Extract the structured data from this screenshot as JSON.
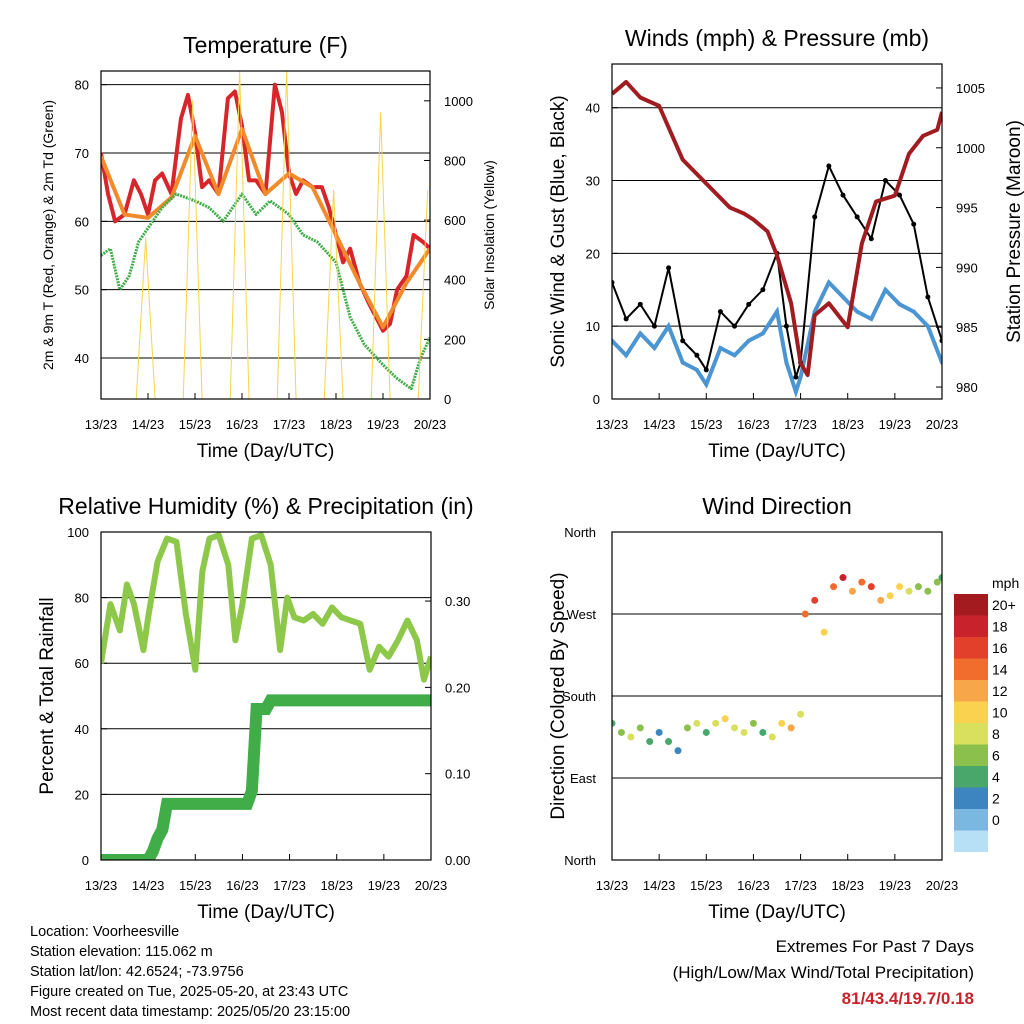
{
  "chart_data": [
    {
      "id": "temperature",
      "type": "line",
      "title": "Temperature (F)",
      "xlabel": "Time (Day/UTC)",
      "ylabel": "2m & 9m T (Red, Orange) & 2m Td (Green)",
      "ylabel_right": "Solar Insolation (Yellow)",
      "ylim": [
        34,
        82
      ],
      "yticks": [
        40,
        50,
        60,
        70,
        80
      ],
      "y2lim": [
        0,
        1100
      ],
      "y2ticks": [
        0,
        200,
        400,
        600,
        800,
        1000
      ],
      "x_ticks": [
        "13/23",
        "14/23",
        "15/23",
        "16/23",
        "17/23",
        "18/23",
        "19/23",
        "20/23"
      ],
      "grid": true,
      "series": [
        {
          "name": "2m T",
          "color": "#d7262b",
          "x": [
            0,
            0.15,
            0.3,
            0.5,
            0.7,
            0.85,
            1.0,
            1.15,
            1.3,
            1.5,
            1.7,
            1.85,
            2.0,
            2.15,
            2.3,
            2.5,
            2.7,
            2.85,
            3.0,
            3.15,
            3.3,
            3.5,
            3.7,
            3.85,
            4.0,
            4.15,
            4.3,
            4.5,
            4.7,
            4.85,
            5.0,
            5.15,
            5.3,
            5.5,
            5.7,
            5.85,
            6.0,
            6.15,
            6.3,
            6.5,
            6.65,
            6.85,
            7.0
          ],
          "values": [
            70,
            64,
            60,
            61,
            66,
            64,
            61,
            66,
            67,
            64,
            75,
            78.5,
            73,
            65,
            66,
            64,
            78,
            79,
            74,
            66,
            66,
            64,
            80,
            76,
            67,
            64,
            66,
            65,
            65,
            62,
            58,
            54,
            56,
            51,
            48,
            46,
            44,
            45,
            50,
            52,
            58,
            57,
            56
          ]
        },
        {
          "name": "9m T",
          "color": "#f08a2a",
          "x": [
            0,
            0.5,
            1.0,
            1.5,
            2.0,
            2.5,
            3.0,
            3.5,
            4.0,
            4.5,
            5.0,
            5.5,
            6.0,
            6.5,
            7.0
          ],
          "values": [
            69.5,
            61,
            60.5,
            63.5,
            72.5,
            64,
            73.5,
            64,
            67,
            65,
            58,
            51,
            44.5,
            51,
            56
          ]
        },
        {
          "name": "2m Td",
          "color": "#41ad49",
          "x": [
            0,
            0.2,
            0.4,
            0.6,
            0.8,
            1.0,
            1.3,
            1.6,
            2.0,
            2.3,
            2.6,
            3.0,
            3.3,
            3.6,
            4.0,
            4.3,
            4.6,
            5.0,
            5.3,
            5.6,
            6.0,
            6.3,
            6.6,
            6.8,
            7.0
          ],
          "values": [
            55,
            56,
            50,
            52,
            57,
            59,
            62,
            64,
            63,
            62,
            60,
            64,
            61,
            63,
            61,
            58,
            57,
            54,
            46,
            42,
            39,
            37,
            35.5,
            40,
            43
          ]
        },
        {
          "name": "Solar Insolation",
          "axis": "right",
          "color": "#f6d54a",
          "x": [
            0.75,
            0.95,
            1.15,
            1.75,
            1.95,
            2.15,
            2.75,
            2.95,
            3.15,
            3.75,
            3.95,
            4.15,
            4.75,
            4.95,
            5.15,
            5.75,
            5.95,
            6.15,
            6.75,
            6.95
          ],
          "values": [
            0,
            540,
            0,
            0,
            1000,
            0,
            0,
            1100,
            0,
            0,
            1100,
            0,
            0,
            700,
            0,
            0,
            960,
            0,
            0,
            700
          ]
        }
      ]
    },
    {
      "id": "winds",
      "type": "scatter",
      "title": "Winds (mph) & Pressure (mb)",
      "xlabel": "Time (Day/UTC)",
      "ylabel": "Sonic Wind & Gust (Blue, Black)",
      "ylabel_right": "Station Pressure (Maroon)",
      "ylim": [
        0,
        46
      ],
      "yticks": [
        0,
        10,
        20,
        30,
        40
      ],
      "y2lim": [
        979,
        1007
      ],
      "y2ticks": [
        980,
        985,
        990,
        995,
        1000,
        1005
      ],
      "x_ticks": [
        "13/23",
        "14/23",
        "15/23",
        "16/23",
        "17/23",
        "18/23",
        "19/23",
        "20/23"
      ],
      "grid": true,
      "series": [
        {
          "name": "Sonic Wind",
          "color": "#4a95d2",
          "x": [
            0,
            0.3,
            0.6,
            0.9,
            1.2,
            1.5,
            1.8,
            2.0,
            2.3,
            2.6,
            2.9,
            3.2,
            3.5,
            3.7,
            3.9,
            4.0,
            4.3,
            4.6,
            4.9,
            5.2,
            5.5,
            5.8,
            6.1,
            6.4,
            6.7,
            7.0
          ],
          "values": [
            8,
            6,
            9,
            7,
            10,
            5,
            4,
            2,
            7,
            6,
            8,
            9,
            12,
            5,
            1,
            3,
            12,
            16,
            14,
            12,
            11,
            15,
            13,
            12,
            10,
            5
          ]
        },
        {
          "name": "Gust",
          "color": "#000000",
          "x": [
            0,
            0.3,
            0.6,
            0.9,
            1.2,
            1.5,
            1.8,
            2.0,
            2.3,
            2.6,
            2.9,
            3.2,
            3.5,
            3.7,
            3.9,
            4.0,
            4.3,
            4.6,
            4.9,
            5.2,
            5.5,
            5.8,
            6.1,
            6.4,
            6.7,
            7.0
          ],
          "values": [
            16,
            11,
            13,
            10,
            18,
            8,
            6,
            4,
            12,
            10,
            13,
            15,
            20,
            10,
            3,
            5,
            25,
            32,
            28,
            25,
            22,
            30,
            28,
            24,
            14,
            8
          ]
        },
        {
          "name": "Station Pressure",
          "axis": "right",
          "color": "#a01c20",
          "x": [
            0,
            0.3,
            0.6,
            1.0,
            1.5,
            2.0,
            2.5,
            2.8,
            3.0,
            3.3,
            3.5,
            3.8,
            4.0,
            4.15,
            4.3,
            4.6,
            5.0,
            5.3,
            5.6,
            6.0,
            6.3,
            6.6,
            6.9,
            7.0
          ],
          "values": [
            1004.5,
            1005.5,
            1004.2,
            1003.5,
            999,
            997,
            995,
            994.5,
            994,
            993,
            991,
            987,
            982,
            981,
            986,
            987,
            985,
            992,
            995.5,
            996,
            999.5,
            1001,
            1001.5,
            1003
          ]
        }
      ]
    },
    {
      "id": "humidity",
      "type": "line",
      "title": "Relative Humidity (%) & Precipitation (in)",
      "xlabel": "Time (Day/UTC)",
      "ylabel": "Percent & Total Rainfall",
      "ylim": [
        0,
        100
      ],
      "yticks": [
        0,
        20,
        40,
        60,
        80,
        100
      ],
      "y2ticks": [
        "0.00",
        "0.10",
        "0.20",
        "0.30"
      ],
      "y2lim": [
        0,
        0.38
      ],
      "x_ticks": [
        "13/23",
        "14/23",
        "15/23",
        "16/23",
        "17/23",
        "18/23",
        "19/23",
        "20/23"
      ],
      "grid": true,
      "series": [
        {
          "name": "Relative Humidity",
          "color": "#8dc84b",
          "x": [
            0,
            0.2,
            0.4,
            0.55,
            0.7,
            0.9,
            1.0,
            1.2,
            1.4,
            1.6,
            1.8,
            2.0,
            2.15,
            2.3,
            2.5,
            2.7,
            2.85,
            3.0,
            3.2,
            3.4,
            3.6,
            3.8,
            3.95,
            4.1,
            4.3,
            4.5,
            4.7,
            4.9,
            5.1,
            5.3,
            5.5,
            5.7,
            5.9,
            6.1,
            6.3,
            6.5,
            6.7,
            6.85,
            7.0
          ],
          "values": [
            60,
            78,
            70,
            84,
            78,
            64,
            74,
            91,
            98,
            97,
            75,
            58,
            88,
            98,
            99,
            90,
            67,
            78,
            98,
            99,
            90,
            64,
            80,
            74,
            73,
            75,
            72,
            77,
            74,
            73,
            72,
            58,
            65,
            62,
            67,
            73,
            67,
            55,
            62
          ]
        },
        {
          "name": "Total Precipitation",
          "axis": "right",
          "color": "#41ad49",
          "x": [
            0,
            0.6,
            0.8,
            1.0,
            1.1,
            1.2,
            1.3,
            1.4,
            2.0,
            2.5,
            3.1,
            3.2,
            3.3,
            3.5,
            3.6,
            4.0,
            5.0,
            6.0,
            7.0
          ],
          "values": [
            0,
            0,
            0,
            0,
            0.01,
            0.025,
            0.035,
            0.065,
            0.065,
            0.065,
            0.065,
            0.08,
            0.175,
            0.175,
            0.185,
            0.185,
            0.185,
            0.185,
            0.185
          ]
        }
      ]
    },
    {
      "id": "wind-direction",
      "type": "scatter",
      "title": "Wind Direction",
      "xlabel": "Time (Day/UTC)",
      "ylabel": "Direction (Colored By Speed)",
      "y_categories": [
        "North",
        "East",
        "South",
        "West",
        "North"
      ],
      "ylim": [
        0,
        360
      ],
      "x_ticks": [
        "13/23",
        "14/23",
        "15/23",
        "16/23",
        "17/23",
        "18/23",
        "19/23",
        "20/23"
      ],
      "grid": true,
      "legend": {
        "title": "mph",
        "placement": "right",
        "labels": [
          "20+",
          "18",
          "16",
          "14",
          "12",
          "10",
          "8",
          "6",
          "4",
          "2",
          "0"
        ]
      },
      "colorscale": [
        "#a31b1f",
        "#c8232c",
        "#e2402b",
        "#f06d2d",
        "#f8a64a",
        "#fbd150",
        "#d9e05e",
        "#8ac04b",
        "#4aa76b",
        "#3d85c0",
        "#7ab8e2",
        "#b7e0f7"
      ],
      "series": [
        {
          "name": "Direction",
          "x": [
            0,
            0.2,
            0.4,
            0.6,
            0.8,
            1.0,
            1.2,
            1.4,
            1.6,
            1.8,
            2.0,
            2.2,
            2.4,
            2.6,
            2.8,
            3.0,
            3.2,
            3.4,
            3.6,
            3.8,
            4.0,
            4.1,
            4.3,
            4.5,
            4.7,
            4.9,
            5.1,
            5.3,
            5.5,
            5.7,
            5.9,
            6.1,
            6.3,
            6.5,
            6.7,
            6.9,
            7.0
          ],
          "values": [
            150,
            140,
            135,
            145,
            130,
            140,
            130,
            120,
            145,
            150,
            140,
            150,
            155,
            145,
            140,
            150,
            140,
            135,
            150,
            145,
            160,
            270,
            285,
            250,
            300,
            310,
            295,
            305,
            300,
            285,
            290,
            300,
            295,
            300,
            295,
            305,
            310
          ],
          "speeds": [
            6,
            8,
            10,
            7,
            5,
            4,
            6,
            3,
            8,
            10,
            6,
            9,
            11,
            10,
            9,
            8,
            6,
            9,
            12,
            14,
            10,
            16,
            18,
            12,
            16,
            19,
            14,
            15,
            17,
            13,
            12,
            11,
            9,
            8,
            8,
            7,
            6
          ]
        }
      ]
    }
  ],
  "info": {
    "location": "Location: Voorheesville",
    "elevation": "Station elevation: 115.062 m",
    "latlon": "Station lat/lon: 42.6524; -73.9756",
    "created": "Figure created on Tue, 2025-05-20, at 23:43 UTC",
    "recent": "Most recent data timestamp: 2025/05/20 23:15:00"
  },
  "extremes": {
    "line1": "Extremes For Past 7 Days",
    "line2": "(High/Low/Max Wind/Total Precipitation)",
    "values": "81/43.4/19.7/0.18"
  }
}
